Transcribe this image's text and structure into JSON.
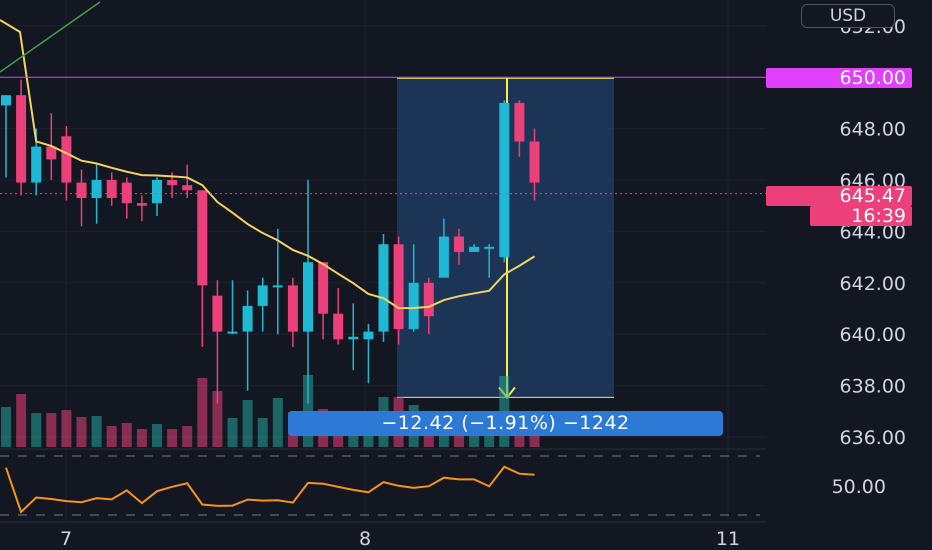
{
  "currency": "USD",
  "price_scale": {
    "ticks": [
      "652.00",
      "648.00",
      "646.00",
      "644.00",
      "642.00",
      "640.00",
      "638.00",
      "636.00"
    ],
    "indicator_ticks": [
      "50.00"
    ]
  },
  "time_axis": {
    "labels": [
      "7",
      "8",
      "11"
    ]
  },
  "tags": {
    "alert_price": "650.00",
    "last_price": "645.47",
    "countdown": "16:39"
  },
  "measure": {
    "label": "−12.42 (−1.91%) −1242"
  },
  "colors": {
    "background": "#131722",
    "grid": "#1e222d",
    "up": "#26a69a",
    "up_bright": "#1fb9d6",
    "down": "#ec407a",
    "ma": "#f4d35e",
    "alert": "#e040fb",
    "rsi": "#f7931a",
    "measure_fill": "#1e3a5f",
    "measure_line": "#ffeb3b",
    "measure_label_bg": "#2d7ad6"
  },
  "chart_data": {
    "type": "candlestick",
    "y_range": [
      635.6,
      652.8
    ],
    "alert_level": 650.0,
    "last_price": 645.47,
    "measure": {
      "from": 649.96,
      "to": 637.54,
      "change": -12.42,
      "change_pct": -1.91,
      "ticks": -1242
    },
    "candles": [
      {
        "o": 648.9,
        "h": 649.3,
        "l": 646.1,
        "c": 649.3
      },
      {
        "o": 649.3,
        "h": 649.9,
        "l": 645.4,
        "c": 645.9
      },
      {
        "o": 645.9,
        "h": 648.0,
        "l": 645.4,
        "c": 647.3
      },
      {
        "o": 647.3,
        "h": 648.6,
        "l": 646.0,
        "c": 646.8
      },
      {
        "o": 647.7,
        "h": 648.1,
        "l": 645.2,
        "c": 645.9
      },
      {
        "o": 645.9,
        "h": 646.4,
        "l": 644.2,
        "c": 645.3
      },
      {
        "o": 645.3,
        "h": 646.6,
        "l": 644.3,
        "c": 646.0
      },
      {
        "o": 646.0,
        "h": 646.3,
        "l": 645.0,
        "c": 645.3
      },
      {
        "o": 645.9,
        "h": 646.1,
        "l": 644.5,
        "c": 645.1
      },
      {
        "o": 645.1,
        "h": 645.4,
        "l": 644.4,
        "c": 645.0
      },
      {
        "o": 645.1,
        "h": 646.1,
        "l": 644.6,
        "c": 646.0
      },
      {
        "o": 646.0,
        "h": 646.3,
        "l": 645.3,
        "c": 645.8
      },
      {
        "o": 645.8,
        "h": 646.6,
        "l": 645.3,
        "c": 645.6
      },
      {
        "o": 645.6,
        "h": 645.6,
        "l": 639.5,
        "c": 641.9
      },
      {
        "o": 641.5,
        "h": 642.1,
        "l": 637.3,
        "c": 640.1
      },
      {
        "o": 640.1,
        "h": 642.1,
        "l": 640.0,
        "c": 640.1
      },
      {
        "o": 640.1,
        "h": 641.7,
        "l": 637.8,
        "c": 641.1
      },
      {
        "o": 641.1,
        "h": 642.2,
        "l": 640.1,
        "c": 641.9
      },
      {
        "o": 641.9,
        "h": 644.1,
        "l": 640.0,
        "c": 641.9
      },
      {
        "o": 641.9,
        "h": 642.2,
        "l": 639.5,
        "c": 640.1
      },
      {
        "o": 640.1,
        "h": 646.0,
        "l": 637.3,
        "c": 642.8
      },
      {
        "o": 642.8,
        "h": 642.8,
        "l": 639.8,
        "c": 640.8
      },
      {
        "o": 640.8,
        "h": 641.8,
        "l": 639.6,
        "c": 639.8
      },
      {
        "o": 639.8,
        "h": 641.2,
        "l": 638.6,
        "c": 639.9
      },
      {
        "o": 639.8,
        "h": 640.4,
        "l": 638.1,
        "c": 640.1
      },
      {
        "o": 640.1,
        "h": 643.9,
        "l": 639.7,
        "c": 643.5
      },
      {
        "o": 643.5,
        "h": 643.8,
        "l": 639.6,
        "c": 640.2
      },
      {
        "o": 640.2,
        "h": 643.5,
        "l": 640.1,
        "c": 642.0
      },
      {
        "o": 642.0,
        "h": 642.2,
        "l": 640.0,
        "c": 640.7
      },
      {
        "o": 642.2,
        "h": 644.5,
        "l": 642.2,
        "c": 643.8
      },
      {
        "o": 643.8,
        "h": 644.1,
        "l": 642.7,
        "c": 643.2
      },
      {
        "o": 643.2,
        "h": 643.5,
        "l": 643.2,
        "c": 643.4
      },
      {
        "o": 643.4,
        "h": 643.5,
        "l": 642.2,
        "c": 643.4
      },
      {
        "o": 643.0,
        "h": 649.1,
        "l": 642.8,
        "c": 649.0
      },
      {
        "o": 649.0,
        "h": 649.1,
        "l": 646.9,
        "c": 647.5
      },
      {
        "o": 647.5,
        "h": 648.0,
        "l": 645.2,
        "c": 645.9
      }
    ]
  }
}
